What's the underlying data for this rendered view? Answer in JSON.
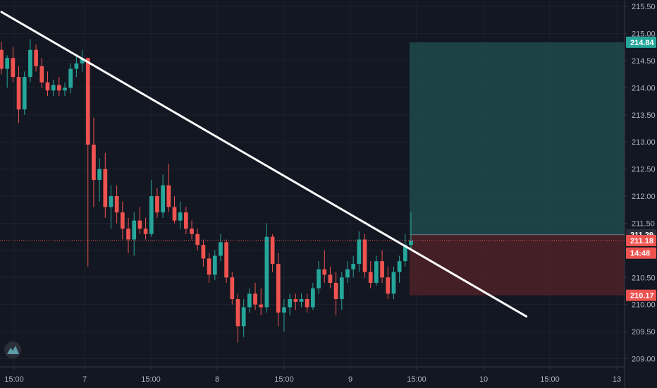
{
  "chart_data": {
    "type": "candlestick",
    "title": "",
    "xlabel": "",
    "ylabel": "",
    "ylim": [
      208.85,
      215.62
    ],
    "y_ticks": [
      "209.00",
      "209.50",
      "210.00",
      "210.50",
      "211.00",
      "211.50",
      "212.00",
      "212.50",
      "213.00",
      "213.50",
      "214.00",
      "214.50",
      "215.00",
      "215.50"
    ],
    "x_ticks": [
      "15:00",
      "7",
      "15:00",
      "8",
      "15:00",
      "9",
      "15:00",
      "10",
      "15:00",
      "13"
    ],
    "grid": true,
    "colors": {
      "up": "#26a69a",
      "down": "#ef5350",
      "trendline": "#ffffff",
      "target_zone": "#1e4a4c",
      "stop_zone": "#4a2127",
      "background": "#131722"
    },
    "price_tags": [
      {
        "label": "214.84",
        "value": 214.84,
        "color": "#26a69a"
      },
      {
        "label": "211.29",
        "value": 211.29,
        "color": "#2a2e39"
      },
      {
        "label": "211.18",
        "value": 211.18,
        "color": "#ef5350"
      },
      {
        "label": "14:48",
        "value": 210.95,
        "color": "#ef5350"
      },
      {
        "label": "210.17",
        "value": 210.17,
        "color": "#ef5350"
      }
    ],
    "current_price": 211.18,
    "position": {
      "entry": 211.29,
      "target": 214.84,
      "stop": 210.17
    },
    "trendline": {
      "start": [
        0,
        215.4
      ],
      "end": [
        91,
        209.78
      ]
    },
    "logo_icon": "tradingview-logo-icon",
    "series": [
      {
        "name": "",
        "index_span": [
          0,
          72
        ],
        "ohlc": [
          [
            214.7,
            214.85,
            214.25,
            214.35
          ],
          [
            214.35,
            214.6,
            214.0,
            214.55
          ],
          [
            214.55,
            214.75,
            214.1,
            214.2
          ],
          [
            214.2,
            214.4,
            213.35,
            213.6
          ],
          [
            213.6,
            214.3,
            213.5,
            214.2
          ],
          [
            214.2,
            214.9,
            214.1,
            214.7
          ],
          [
            214.7,
            214.8,
            214.3,
            214.4
          ],
          [
            214.4,
            214.55,
            214.0,
            214.1
          ],
          [
            214.1,
            214.3,
            213.85,
            213.95
          ],
          [
            213.95,
            214.15,
            213.85,
            214.05
          ],
          [
            214.05,
            214.2,
            213.85,
            213.95
          ],
          [
            213.95,
            214.1,
            213.85,
            214.0
          ],
          [
            214.0,
            214.45,
            213.9,
            214.35
          ],
          [
            214.35,
            214.6,
            214.2,
            214.45
          ],
          [
            214.45,
            214.7,
            214.3,
            214.55
          ],
          [
            214.55,
            214.55,
            210.7,
            212.95
          ],
          [
            212.95,
            213.45,
            211.8,
            212.3
          ],
          [
            212.3,
            212.7,
            211.9,
            212.5
          ],
          [
            212.5,
            212.8,
            211.6,
            211.8
          ],
          [
            211.8,
            212.2,
            211.4,
            212.0
          ],
          [
            212.0,
            212.2,
            211.5,
            211.7
          ],
          [
            211.7,
            211.9,
            211.2,
            211.4
          ],
          [
            211.4,
            211.6,
            210.95,
            211.2
          ],
          [
            211.2,
            211.7,
            210.9,
            211.55
          ],
          [
            211.55,
            211.8,
            211.3,
            211.4
          ],
          [
            211.4,
            211.6,
            211.2,
            211.3
          ],
          [
            211.3,
            212.3,
            211.25,
            212.0
          ],
          [
            212.0,
            212.15,
            211.6,
            211.7
          ],
          [
            211.7,
            212.4,
            211.6,
            212.2
          ],
          [
            212.2,
            212.6,
            211.7,
            211.8
          ],
          [
            211.8,
            212.0,
            211.5,
            211.55
          ],
          [
            211.55,
            211.9,
            211.4,
            211.7
          ],
          [
            211.7,
            211.8,
            211.3,
            211.4
          ],
          [
            211.4,
            211.55,
            211.2,
            211.3
          ],
          [
            211.3,
            211.4,
            211.0,
            211.1
          ],
          [
            211.1,
            211.2,
            210.7,
            210.85
          ],
          [
            210.85,
            210.95,
            210.4,
            210.55
          ],
          [
            210.55,
            211.0,
            210.45,
            210.9
          ],
          [
            210.9,
            211.3,
            210.8,
            211.15
          ],
          [
            211.15,
            211.2,
            210.4,
            210.5
          ],
          [
            210.5,
            210.6,
            210.0,
            210.1
          ],
          [
            210.1,
            210.2,
            209.3,
            209.6
          ],
          [
            209.6,
            210.1,
            209.4,
            209.95
          ],
          [
            209.95,
            210.3,
            209.85,
            210.2
          ],
          [
            210.2,
            210.4,
            209.9,
            210.0
          ],
          [
            210.0,
            210.3,
            209.8,
            209.95
          ],
          [
            209.95,
            211.5,
            209.85,
            211.25
          ],
          [
            211.25,
            211.3,
            210.6,
            210.75
          ],
          [
            210.75,
            210.95,
            209.6,
            209.85
          ],
          [
            209.85,
            210.1,
            209.5,
            209.95
          ],
          [
            209.95,
            210.2,
            209.8,
            210.1
          ],
          [
            210.1,
            210.2,
            209.9,
            210.05
          ],
          [
            210.05,
            210.2,
            209.95,
            210.1
          ],
          [
            210.1,
            210.2,
            209.85,
            209.95
          ],
          [
            209.95,
            210.4,
            209.9,
            210.3
          ],
          [
            210.3,
            210.8,
            210.2,
            210.65
          ],
          [
            210.65,
            211.0,
            210.4,
            210.55
          ],
          [
            210.55,
            210.7,
            210.3,
            210.4
          ],
          [
            210.4,
            210.6,
            209.8,
            210.1
          ],
          [
            210.1,
            210.6,
            209.9,
            210.5
          ],
          [
            210.5,
            210.8,
            210.4,
            210.65
          ],
          [
            210.65,
            210.9,
            210.5,
            210.75
          ],
          [
            210.75,
            211.35,
            210.6,
            211.2
          ],
          [
            211.2,
            211.3,
            210.5,
            210.6
          ],
          [
            210.6,
            210.8,
            210.3,
            210.4
          ],
          [
            210.4,
            210.9,
            210.35,
            210.8
          ],
          [
            210.8,
            211.0,
            210.4,
            210.5
          ],
          [
            210.5,
            210.7,
            210.1,
            210.2
          ],
          [
            210.2,
            210.7,
            210.1,
            210.6
          ],
          [
            210.6,
            210.9,
            210.4,
            210.8
          ],
          [
            210.8,
            211.3,
            210.7,
            211.1
          ],
          [
            211.1,
            211.7,
            211.0,
            211.18
          ]
        ]
      }
    ]
  }
}
